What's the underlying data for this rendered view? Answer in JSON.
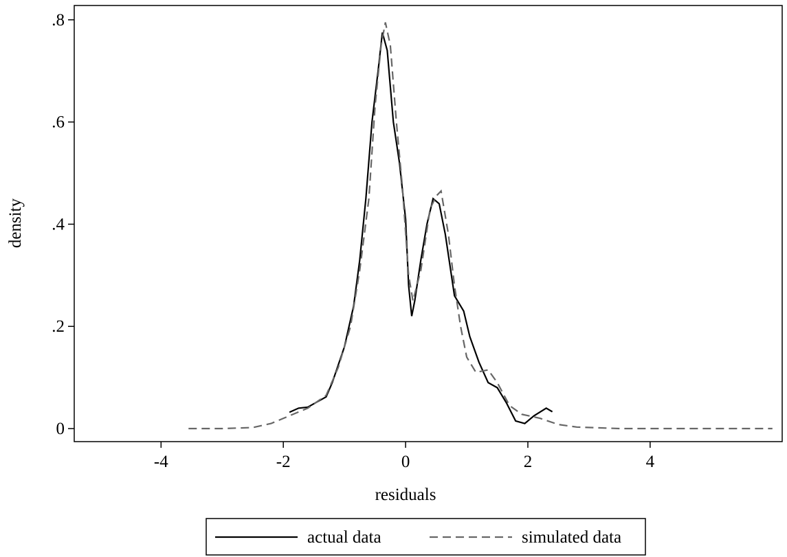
{
  "chart_data": {
    "type": "line",
    "x_label": "residuals",
    "y_label": "density",
    "xlim": [
      -5.42,
      6.16
    ],
    "ylim": [
      -0.0255,
      0.828
    ],
    "xticks": [
      -4,
      -2,
      0,
      2,
      4
    ],
    "yticks": [
      0,
      {
        "value": 0.2,
        "label": ".2"
      },
      {
        "value": 0.4,
        "label": ".4"
      },
      {
        "value": 0.6,
        "label": ".6"
      },
      {
        "value": 0.8,
        "label": ".8"
      }
    ],
    "legend": "bottom",
    "series": [
      {
        "name": "actual data",
        "color": "#000000",
        "dash": "solid",
        "x": [
          -1.9,
          -1.75,
          -1.6,
          -1.45,
          -1.3,
          -1.2,
          -1.0,
          -0.85,
          -0.75,
          -0.65,
          -0.55,
          -0.45,
          -0.38,
          -0.3,
          -0.2,
          -0.1,
          0.0,
          0.05,
          0.1,
          0.15,
          0.25,
          0.35,
          0.45,
          0.55,
          0.65,
          0.8,
          0.95,
          1.05,
          1.2,
          1.35,
          1.5,
          1.65,
          1.8,
          1.95,
          2.1,
          2.3,
          2.4
        ],
        "values": [
          0.032,
          0.04,
          0.042,
          0.052,
          0.062,
          0.09,
          0.16,
          0.24,
          0.33,
          0.45,
          0.6,
          0.7,
          0.775,
          0.74,
          0.6,
          0.52,
          0.41,
          0.28,
          0.22,
          0.25,
          0.33,
          0.4,
          0.45,
          0.44,
          0.38,
          0.26,
          0.23,
          0.18,
          0.13,
          0.09,
          0.08,
          0.05,
          0.015,
          0.01,
          0.025,
          0.04,
          0.033
        ]
      },
      {
        "name": "simulated data",
        "color": "#666666",
        "dash": "dashed",
        "x": [
          -3.55,
          -3.0,
          -2.5,
          -2.2,
          -1.9,
          -1.6,
          -1.3,
          -1.1,
          -0.9,
          -0.75,
          -0.6,
          -0.5,
          -0.4,
          -0.33,
          -0.25,
          -0.15,
          -0.05,
          0.05,
          0.12,
          0.25,
          0.4,
          0.5,
          0.58,
          0.7,
          0.8,
          0.9,
          1.0,
          1.15,
          1.35,
          1.5,
          1.7,
          1.9,
          2.2,
          2.5,
          2.8,
          3.5,
          4.5,
          6.0
        ],
        "values": [
          0,
          0,
          0.002,
          0.01,
          0.025,
          0.04,
          0.065,
          0.12,
          0.2,
          0.31,
          0.45,
          0.63,
          0.75,
          0.795,
          0.75,
          0.6,
          0.47,
          0.3,
          0.25,
          0.31,
          0.43,
          0.455,
          0.465,
          0.38,
          0.28,
          0.2,
          0.14,
          0.11,
          0.115,
          0.09,
          0.045,
          0.028,
          0.02,
          0.008,
          0.003,
          0,
          0,
          0
        ]
      }
    ]
  }
}
